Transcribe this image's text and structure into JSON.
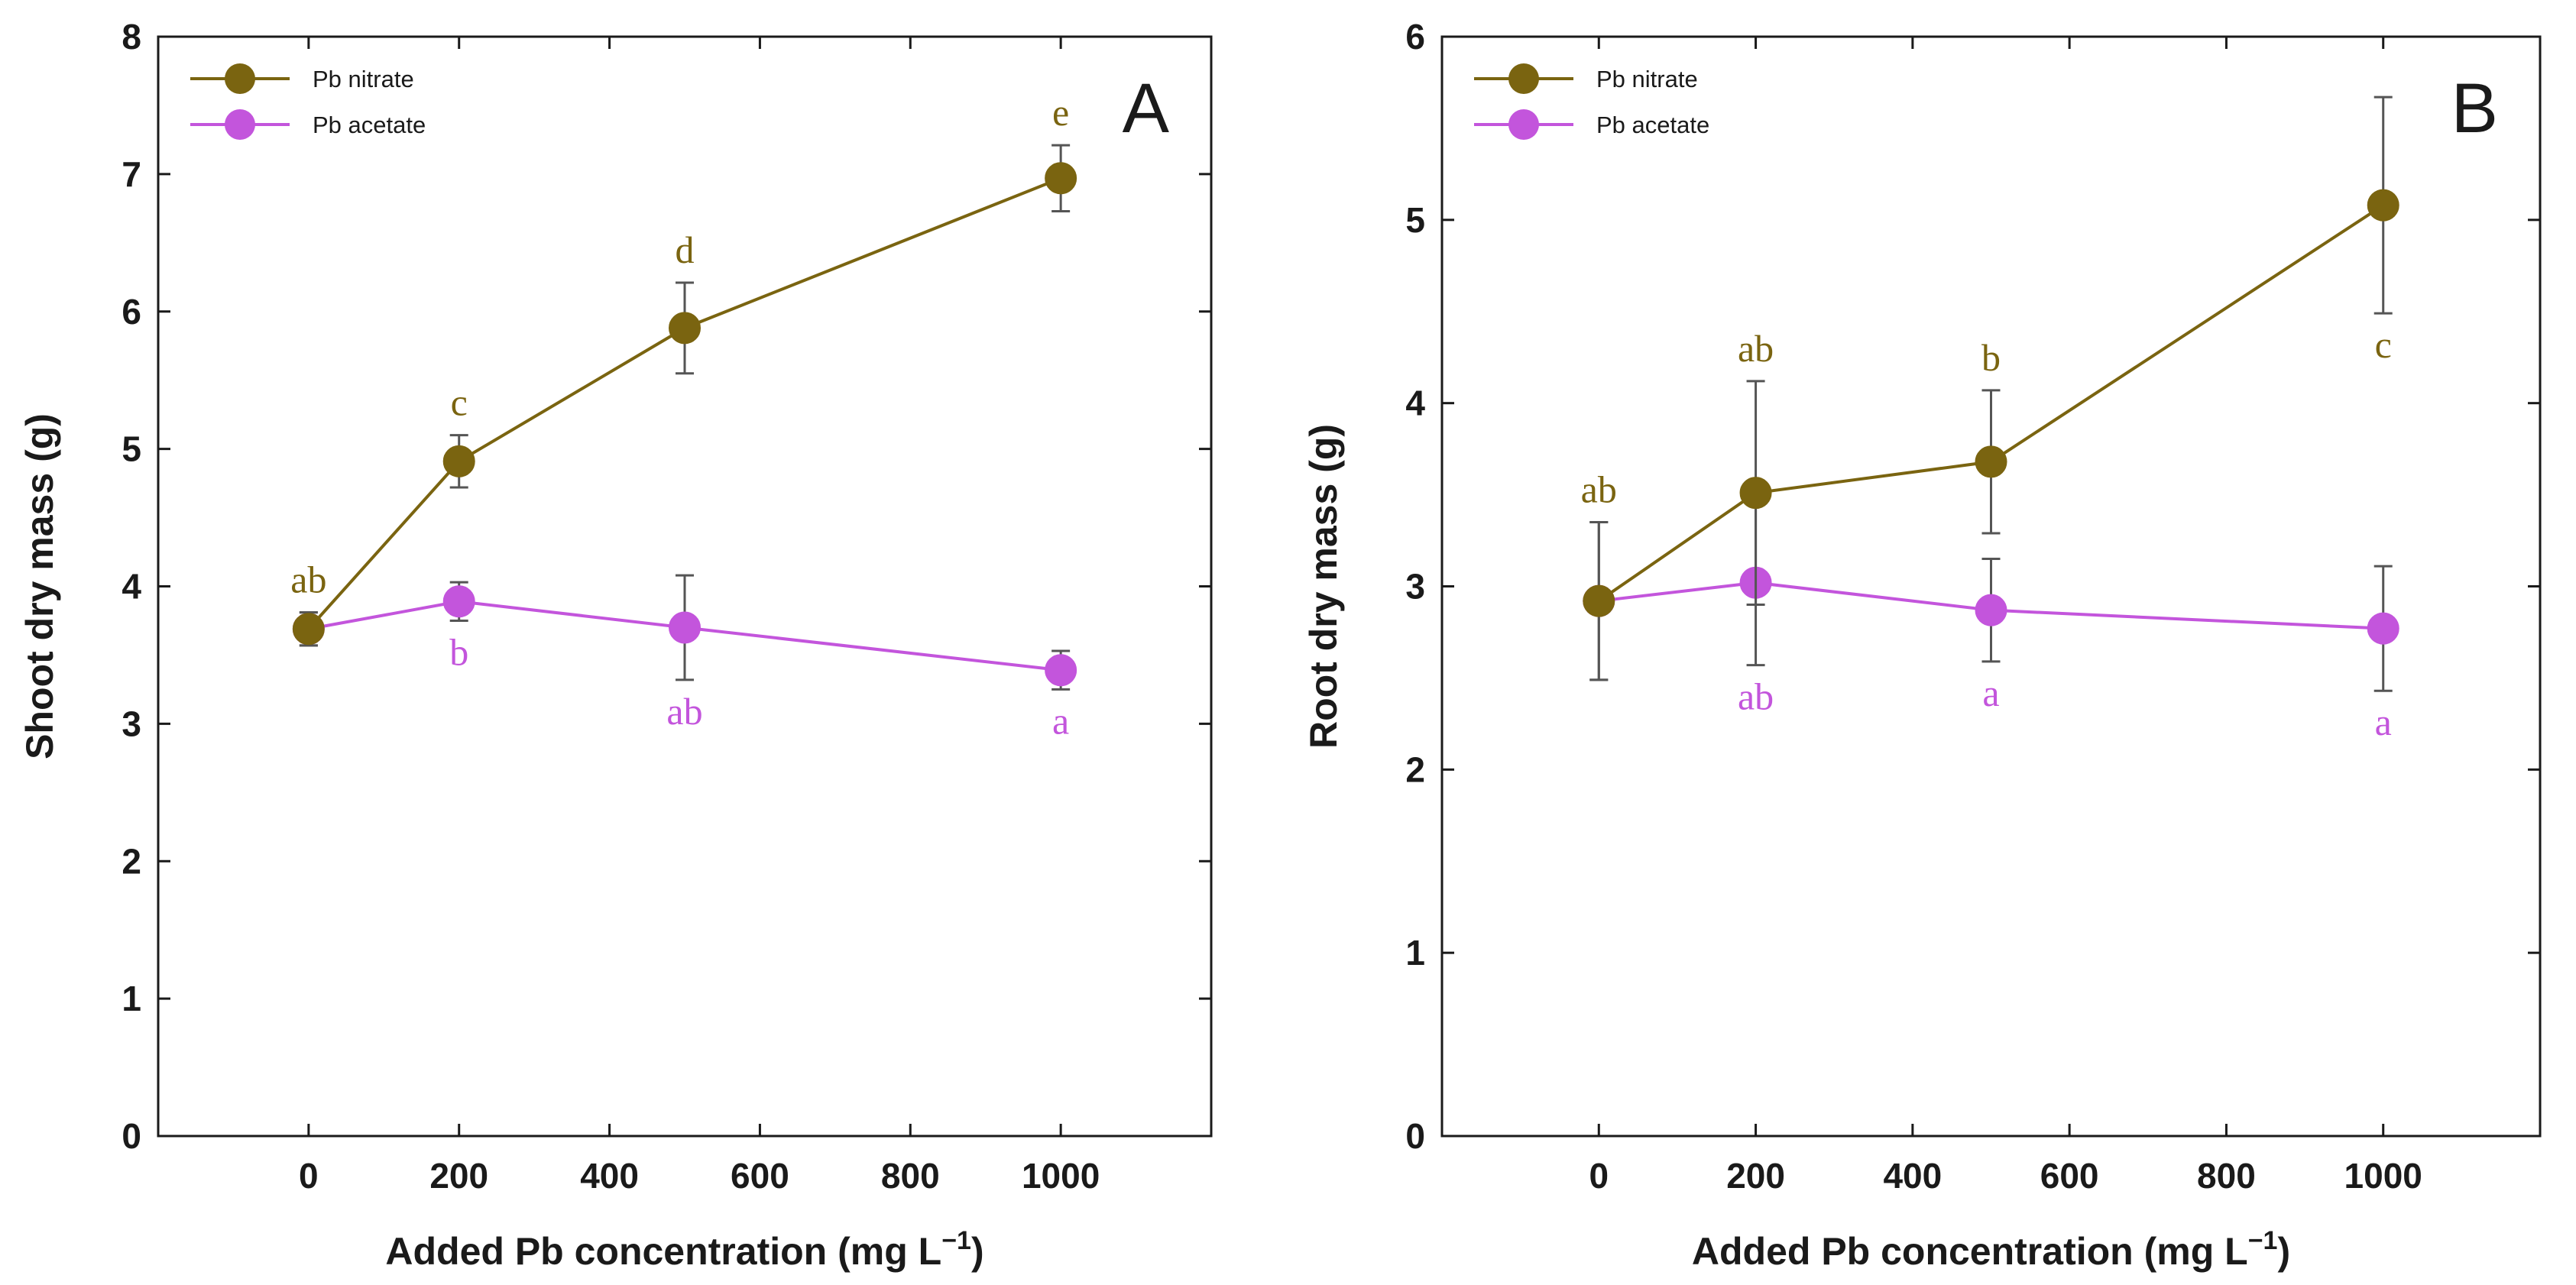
{
  "colors": {
    "nitrate": "#7a6410",
    "acetate": "#c355dc",
    "axis": "#1a1a1a",
    "errorbar": "#555555"
  },
  "chart_data": [
    {
      "type": "line",
      "panel": "A",
      "xlabel": "Added Pb concentration (mg L",
      "xlabel_sup": "−1",
      "xlabel_end": ")",
      "ylabel": "Shoot dry mass (g)",
      "xlim": [
        -200,
        1200
      ],
      "ylim": [
        0,
        8
      ],
      "xticks": [
        0,
        200,
        400,
        600,
        800,
        1000
      ],
      "yticks": [
        0,
        1,
        2,
        3,
        4,
        5,
        6,
        7,
        8
      ],
      "legend_position": "top-left",
      "x": [
        0,
        200,
        500,
        1000
      ],
      "series": [
        {
          "name": "Pb nitrate",
          "color_key": "nitrate",
          "values": [
            3.69,
            4.91,
            5.88,
            6.97
          ],
          "errors": [
            0.12,
            0.19,
            0.33,
            0.24
          ],
          "letters": [
            "ab",
            "c",
            "d",
            "e"
          ],
          "letter_side": "above"
        },
        {
          "name": "Pb acetate",
          "color_key": "acetate",
          "values": [
            3.69,
            3.89,
            3.7,
            3.39
          ],
          "errors": [
            0.12,
            0.14,
            0.38,
            0.14
          ],
          "letters": [
            "",
            "b",
            "ab",
            "a"
          ],
          "letter_side": "below"
        }
      ]
    },
    {
      "type": "line",
      "panel": "B",
      "xlabel": "Added Pb concentration (mg L",
      "xlabel_sup": "−1",
      "xlabel_end": ")",
      "ylabel": "Root dry mass (g)",
      "xlim": [
        -200,
        1200
      ],
      "ylim": [
        0,
        6
      ],
      "xticks": [
        0,
        200,
        400,
        600,
        800,
        1000
      ],
      "yticks": [
        0,
        1,
        2,
        3,
        4,
        5,
        6
      ],
      "legend_position": "top-left",
      "x": [
        0,
        200,
        500,
        1000
      ],
      "series": [
        {
          "name": "Pb nitrate",
          "color_key": "nitrate",
          "values": [
            2.92,
            3.51,
            3.68,
            5.08
          ],
          "errors": [
            0.43,
            0.61,
            0.39,
            0.59
          ],
          "letters": [
            "ab",
            "ab",
            "b",
            "c"
          ],
          "letter_positions": [
            "above",
            "above",
            "above",
            "below"
          ]
        },
        {
          "name": "Pb acetate",
          "color_key": "acetate",
          "values": [
            2.92,
            3.02,
            2.87,
            2.77
          ],
          "errors": [
            0.43,
            0.45,
            0.28,
            0.34
          ],
          "letters": [
            "",
            "ab",
            "a",
            "a"
          ],
          "letter_side": "below"
        }
      ]
    }
  ]
}
